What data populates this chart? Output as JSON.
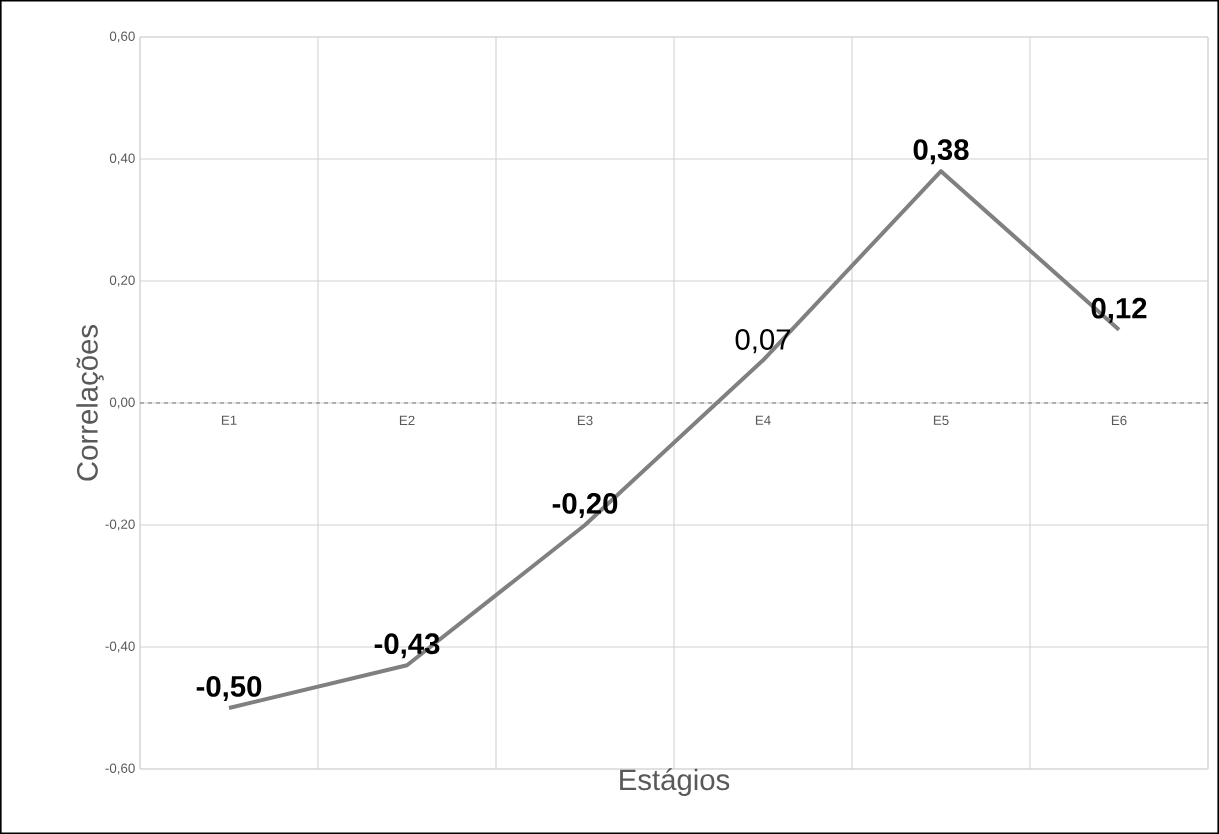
{
  "chart_data": {
    "type": "line",
    "xlabel": "Estágios",
    "ylabel": "Correlações",
    "categories": [
      "E1",
      "E2",
      "E3",
      "E4",
      "E5",
      "E6"
    ],
    "series": [
      {
        "color": "#808080",
        "values": [
          -0.5,
          -0.43,
          -0.2,
          0.07,
          0.38,
          0.12
        ]
      }
    ],
    "value_labels": [
      "**-0,50**",
      "**-0,43**",
      "**-0,20**",
      "0,07",
      "**0,38**",
      "**0,12**"
    ],
    "ylim": [
      -0.6,
      0.6
    ],
    "yticks": [
      {
        "value": -0.6,
        "label": "-0,60"
      },
      {
        "value": -0.4,
        "label": "-0,40"
      },
      {
        "value": -0.2,
        "label": "-0,20"
      },
      {
        "value": 0,
        "label": "0,00"
      },
      {
        "value": 0.2,
        "label": "0,20"
      },
      {
        "value": 0.4,
        "label": "0,40"
      },
      {
        "value": 0.6,
        "label": "0,60"
      }
    ],
    "ref_lines": [
      {
        "axis": "y",
        "value": 0,
        "color": "#595959",
        "line_style": "dashed"
      }
    ],
    "grid": true,
    "marker": "none",
    "line_style": "solid"
  }
}
